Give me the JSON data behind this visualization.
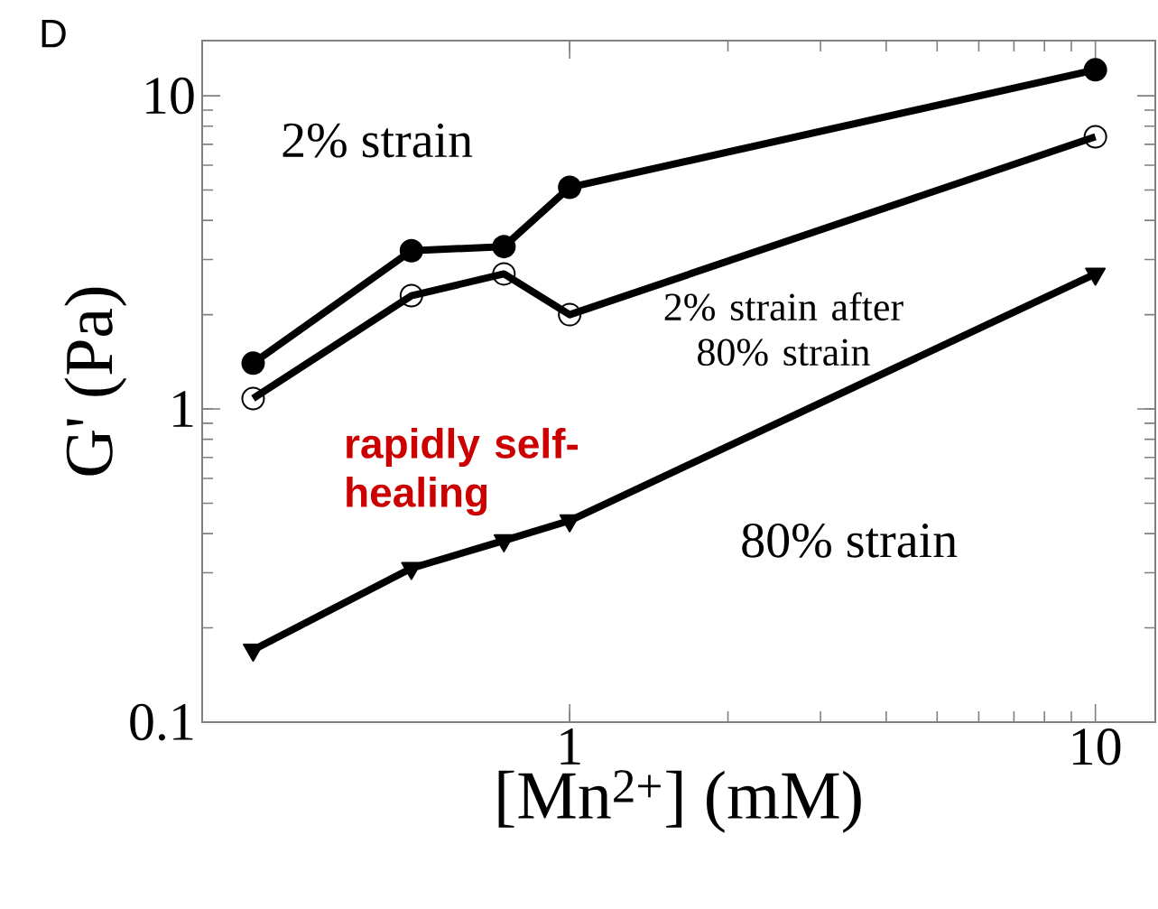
{
  "chart_data": {
    "type": "line",
    "xlabel": "[Mn$^{2+}$] (mM)",
    "ylabel": "G' (Pa)",
    "log": "xy",
    "xlim": [
      0.2,
      13
    ],
    "ylim": [
      0.1,
      15
    ],
    "xticks": [
      1,
      10
    ],
    "yticks": [
      0.1,
      1,
      10
    ],
    "grid": false,
    "line_style": "solid",
    "x": [
      0.25,
      0.5,
      0.75,
      1,
      10
    ],
    "series": [
      {
        "name": "2% strain",
        "color": "#000000",
        "marker": "circle",
        "values": [
          1.4,
          3.2,
          3.3,
          5.1,
          12.1
        ]
      },
      {
        "name": "2% strain after 80% strain",
        "color": "#000000",
        "marker": "circle",
        "values": [
          1.08,
          2.3,
          2.7,
          2.0,
          7.4
        ]
      },
      {
        "name": "80% strain",
        "color": "#000000",
        "marker": "triangle",
        "values": [
          0.17,
          0.31,
          0.38,
          0.44,
          2.7
        ]
      }
    ],
    "annotations": [
      "D",
      "rapidly self-healing"
    ]
  }
}
